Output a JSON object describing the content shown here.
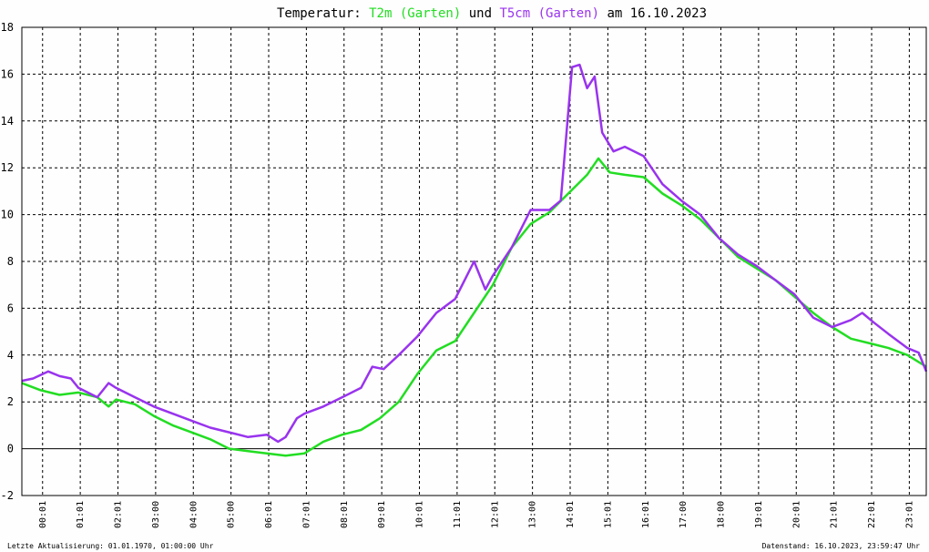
{
  "title": {
    "prefix": "Temperatur: ",
    "series1": "T2m (Garten)",
    "mid": " und ",
    "series2": "T5cm (Garten)",
    "suffix": " am 16.10.2023"
  },
  "footer": {
    "left": "Letzte Aktualisierung: 01.01.1970, 01:00:00 Uhr",
    "right": "Datenstand: 16.10.2023, 23:59:47 Uhr"
  },
  "colors": {
    "background": "#fefefe",
    "t2m": "#22dd22",
    "t5cm": "#9933ee",
    "grid": "#000000"
  },
  "chart_data": {
    "type": "line",
    "xlabel": "",
    "ylabel": "",
    "x_unit": "hours",
    "xlim": [
      0,
      24
    ],
    "ylim": [
      -2,
      18
    ],
    "grid": true,
    "y_ticks": [
      -2,
      0,
      2,
      4,
      6,
      8,
      10,
      12,
      14,
      16,
      18
    ],
    "x_tick_labels": [
      "00:01",
      "01:01",
      "02:01",
      "03:00",
      "04:00",
      "05:00",
      "06:01",
      "07:01",
      "08:01",
      "09:01",
      "10:01",
      "11:01",
      "12:01",
      "13:00",
      "14:01",
      "15:01",
      "16:01",
      "17:00",
      "18:00",
      "19:01",
      "20:01",
      "21:01",
      "22:01",
      "23:01"
    ],
    "series": [
      {
        "name": "T2m (Garten)",
        "color": "#22dd22",
        "points": [
          [
            0,
            2.8
          ],
          [
            0.5,
            2.5
          ],
          [
            1,
            2.3
          ],
          [
            1.5,
            2.4
          ],
          [
            2,
            2.2
          ],
          [
            2.3,
            1.8
          ],
          [
            2.5,
            2.1
          ],
          [
            3,
            1.9
          ],
          [
            3.5,
            1.4
          ],
          [
            4,
            1.0
          ],
          [
            4.5,
            0.7
          ],
          [
            5,
            0.4
          ],
          [
            5.5,
            0.0
          ],
          [
            6,
            -0.1
          ],
          [
            6.5,
            -0.2
          ],
          [
            7,
            -0.3
          ],
          [
            7.5,
            -0.2
          ],
          [
            8,
            0.3
          ],
          [
            8.5,
            0.6
          ],
          [
            9,
            0.8
          ],
          [
            9.5,
            1.3
          ],
          [
            10,
            2.0
          ],
          [
            10.5,
            3.2
          ],
          [
            11,
            4.2
          ],
          [
            11.5,
            4.6
          ],
          [
            12,
            5.8
          ],
          [
            12.5,
            7.0
          ],
          [
            13,
            8.6
          ],
          [
            13.5,
            9.6
          ],
          [
            14,
            10.1
          ],
          [
            14.5,
            10.9
          ],
          [
            15,
            11.7
          ],
          [
            15.3,
            12.4
          ],
          [
            15.6,
            11.8
          ],
          [
            16,
            11.7
          ],
          [
            16.5,
            11.6
          ],
          [
            17,
            10.9
          ],
          [
            17.5,
            10.4
          ],
          [
            18,
            9.8
          ],
          [
            18.5,
            9.0
          ],
          [
            19,
            8.2
          ],
          [
            19.5,
            7.7
          ],
          [
            20,
            7.2
          ],
          [
            20.5,
            6.5
          ],
          [
            21,
            5.8
          ],
          [
            21.5,
            5.2
          ],
          [
            22,
            4.7
          ],
          [
            22.5,
            4.5
          ],
          [
            23,
            4.3
          ],
          [
            23.5,
            4.0
          ],
          [
            24,
            3.5
          ]
        ]
      },
      {
        "name": "T5cm (Garten)",
        "color": "#9933ee",
        "points": [
          [
            0,
            2.9
          ],
          [
            0.3,
            3.0
          ],
          [
            0.7,
            3.3
          ],
          [
            1,
            3.1
          ],
          [
            1.3,
            3.0
          ],
          [
            1.5,
            2.6
          ],
          [
            2,
            2.2
          ],
          [
            2.3,
            2.8
          ],
          [
            2.5,
            2.6
          ],
          [
            3,
            2.2
          ],
          [
            3.5,
            1.8
          ],
          [
            4,
            1.5
          ],
          [
            4.5,
            1.2
          ],
          [
            5,
            0.9
          ],
          [
            5.5,
            0.7
          ],
          [
            6,
            0.5
          ],
          [
            6.5,
            0.6
          ],
          [
            6.8,
            0.3
          ],
          [
            7,
            0.5
          ],
          [
            7.3,
            1.3
          ],
          [
            7.5,
            1.5
          ],
          [
            8,
            1.8
          ],
          [
            8.5,
            2.2
          ],
          [
            9,
            2.6
          ],
          [
            9.3,
            3.5
          ],
          [
            9.6,
            3.4
          ],
          [
            10,
            4.0
          ],
          [
            10.5,
            4.8
          ],
          [
            11,
            5.8
          ],
          [
            11.5,
            6.4
          ],
          [
            12,
            8.0
          ],
          [
            12.3,
            6.8
          ],
          [
            12.5,
            7.4
          ],
          [
            13,
            8.6
          ],
          [
            13.5,
            10.2
          ],
          [
            14,
            10.2
          ],
          [
            14.3,
            10.6
          ],
          [
            14.6,
            16.3
          ],
          [
            14.8,
            16.4
          ],
          [
            15,
            15.4
          ],
          [
            15.2,
            15.9
          ],
          [
            15.4,
            13.5
          ],
          [
            15.7,
            12.7
          ],
          [
            16,
            12.9
          ],
          [
            16.5,
            12.5
          ],
          [
            17,
            11.3
          ],
          [
            17.5,
            10.6
          ],
          [
            18,
            10.0
          ],
          [
            18.5,
            9.0
          ],
          [
            19,
            8.3
          ],
          [
            19.5,
            7.8
          ],
          [
            20,
            7.2
          ],
          [
            20.5,
            6.6
          ],
          [
            21,
            5.6
          ],
          [
            21.5,
            5.2
          ],
          [
            22,
            5.5
          ],
          [
            22.3,
            5.8
          ],
          [
            22.6,
            5.4
          ],
          [
            23,
            4.9
          ],
          [
            23.5,
            4.3
          ],
          [
            23.8,
            4.1
          ],
          [
            24,
            3.3
          ]
        ]
      }
    ]
  }
}
